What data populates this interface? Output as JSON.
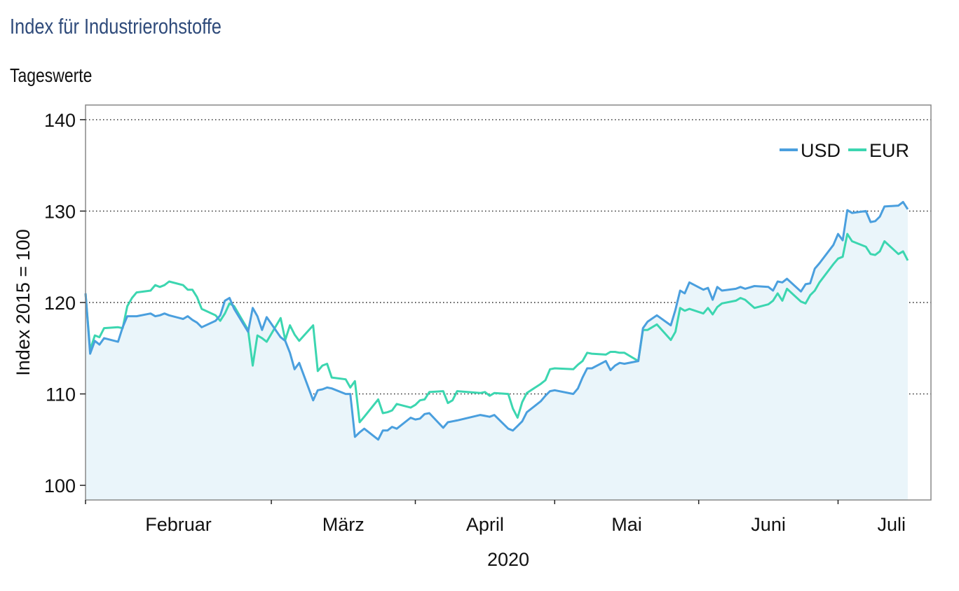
{
  "title": "Index für Industrierohstoffe",
  "subtitle": "Tageswerte",
  "chart_data": {
    "type": "line",
    "title": "Index für Industrierohstoffe",
    "subtitle": "Tageswerte",
    "ylabel": "Index 2015 = 100",
    "xlabel": "2020",
    "ylim": [
      98.4,
      141.6
    ],
    "yticks": [
      100,
      110,
      120,
      130,
      140
    ],
    "x_start": "2020-01-20",
    "x_end": "2020-07-20",
    "month_ticks": [
      "2020-01-20",
      "2020-02-29",
      "2020-03-31",
      "2020-04-30",
      "2020-05-31",
      "2020-06-30"
    ],
    "month_labels": [
      "Februar",
      "März",
      "April",
      "Mai",
      "Juni",
      "Juli"
    ],
    "grid": "horizontal dotted at 110, 120, 130, 140",
    "legend": "top-right",
    "series": [
      {
        "name": "USD",
        "color": "#4a9fde",
        "values": [
          [
            "2020-01-20",
            121.0
          ],
          [
            "2020-01-21",
            114.4
          ],
          [
            "2020-01-22",
            115.8
          ],
          [
            "2020-01-23",
            115.4
          ],
          [
            "2020-01-24",
            116.1
          ],
          [
            "2020-01-27",
            115.7
          ],
          [
            "2020-01-28",
            117.3
          ],
          [
            "2020-01-29",
            118.5
          ],
          [
            "2020-01-30",
            118.5
          ],
          [
            "2020-01-31",
            118.5
          ],
          [
            "2020-02-03",
            118.8
          ],
          [
            "2020-02-04",
            118.5
          ],
          [
            "2020-02-05",
            118.6
          ],
          [
            "2020-02-06",
            118.8
          ],
          [
            "2020-02-07",
            118.6
          ],
          [
            "2020-02-10",
            118.2
          ],
          [
            "2020-02-11",
            118.5
          ],
          [
            "2020-02-12",
            118.1
          ],
          [
            "2020-02-13",
            117.8
          ],
          [
            "2020-02-14",
            117.3
          ],
          [
            "2020-02-17",
            118.0
          ],
          [
            "2020-02-18",
            118.6
          ],
          [
            "2020-02-19",
            120.2
          ],
          [
            "2020-02-20",
            120.5
          ],
          [
            "2020-02-21",
            119.3
          ],
          [
            "2020-02-24",
            116.8
          ],
          [
            "2020-02-25",
            119.4
          ],
          [
            "2020-02-26",
            118.5
          ],
          [
            "2020-02-27",
            117.0
          ],
          [
            "2020-02-28",
            118.4
          ],
          [
            "2020-03-02",
            116.2
          ],
          [
            "2020-03-03",
            115.8
          ],
          [
            "2020-03-04",
            114.5
          ],
          [
            "2020-03-05",
            112.7
          ],
          [
            "2020-03-06",
            113.4
          ],
          [
            "2020-03-09",
            109.3
          ],
          [
            "2020-03-10",
            110.4
          ],
          [
            "2020-03-11",
            110.5
          ],
          [
            "2020-03-12",
            110.7
          ],
          [
            "2020-03-13",
            110.6
          ],
          [
            "2020-03-16",
            110.0
          ],
          [
            "2020-03-17",
            110.0
          ],
          [
            "2020-03-18",
            105.3
          ],
          [
            "2020-03-19",
            105.8
          ],
          [
            "2020-03-20",
            106.2
          ],
          [
            "2020-03-23",
            105.0
          ],
          [
            "2020-03-24",
            106.0
          ],
          [
            "2020-03-25",
            106.0
          ],
          [
            "2020-03-26",
            106.4
          ],
          [
            "2020-03-27",
            106.2
          ],
          [
            "2020-03-30",
            107.4
          ],
          [
            "2020-03-31",
            107.2
          ],
          [
            "2020-04-01",
            107.3
          ],
          [
            "2020-04-02",
            107.8
          ],
          [
            "2020-04-03",
            107.9
          ],
          [
            "2020-04-06",
            106.3
          ],
          [
            "2020-04-07",
            106.9
          ],
          [
            "2020-04-08",
            107.0
          ],
          [
            "2020-04-09",
            107.1
          ],
          [
            "2020-04-14",
            107.7
          ],
          [
            "2020-04-15",
            107.6
          ],
          [
            "2020-04-16",
            107.5
          ],
          [
            "2020-04-17",
            107.7
          ],
          [
            "2020-04-20",
            106.2
          ],
          [
            "2020-04-21",
            106.0
          ],
          [
            "2020-04-22",
            106.5
          ],
          [
            "2020-04-23",
            107.0
          ],
          [
            "2020-04-24",
            108.0
          ],
          [
            "2020-04-27",
            109.2
          ],
          [
            "2020-04-28",
            109.8
          ],
          [
            "2020-04-29",
            110.3
          ],
          [
            "2020-04-30",
            110.4
          ],
          [
            "2020-05-04",
            110.0
          ],
          [
            "2020-05-05",
            110.6
          ],
          [
            "2020-05-06",
            111.8
          ],
          [
            "2020-05-07",
            112.8
          ],
          [
            "2020-05-08",
            112.8
          ],
          [
            "2020-05-11",
            113.6
          ],
          [
            "2020-05-12",
            112.6
          ],
          [
            "2020-05-13",
            113.1
          ],
          [
            "2020-05-14",
            113.4
          ],
          [
            "2020-05-15",
            113.3
          ],
          [
            "2020-05-18",
            113.6
          ],
          [
            "2020-05-19",
            117.2
          ],
          [
            "2020-05-20",
            117.9
          ],
          [
            "2020-05-22",
            118.6
          ],
          [
            "2020-05-25",
            117.5
          ],
          [
            "2020-05-26",
            119.2
          ],
          [
            "2020-05-27",
            121.3
          ],
          [
            "2020-05-28",
            121.0
          ],
          [
            "2020-05-29",
            122.2
          ],
          [
            "2020-06-01",
            121.4
          ],
          [
            "2020-06-02",
            121.6
          ],
          [
            "2020-06-03",
            120.3
          ],
          [
            "2020-06-04",
            121.7
          ],
          [
            "2020-06-05",
            121.3
          ],
          [
            "2020-06-08",
            121.5
          ],
          [
            "2020-06-09",
            121.7
          ],
          [
            "2020-06-10",
            121.5
          ],
          [
            "2020-06-12",
            121.8
          ],
          [
            "2020-06-15",
            121.7
          ],
          [
            "2020-06-16",
            121.3
          ],
          [
            "2020-06-17",
            122.3
          ],
          [
            "2020-06-18",
            122.2
          ],
          [
            "2020-06-19",
            122.6
          ],
          [
            "2020-06-22",
            121.2
          ],
          [
            "2020-06-23",
            122.0
          ],
          [
            "2020-06-24",
            122.1
          ],
          [
            "2020-06-25",
            123.7
          ],
          [
            "2020-06-26",
            124.3
          ],
          [
            "2020-06-29",
            126.3
          ],
          [
            "2020-06-30",
            127.5
          ],
          [
            "2020-07-01",
            126.8
          ],
          [
            "2020-07-02",
            130.1
          ],
          [
            "2020-07-03",
            129.8
          ],
          [
            "2020-07-06",
            130.0
          ],
          [
            "2020-07-07",
            128.8
          ],
          [
            "2020-07-08",
            128.9
          ],
          [
            "2020-07-09",
            129.4
          ],
          [
            "2020-07-10",
            130.5
          ],
          [
            "2020-07-13",
            130.6
          ],
          [
            "2020-07-14",
            131.0
          ],
          [
            "2020-07-15",
            130.2
          ]
        ]
      },
      {
        "name": "EUR",
        "color": "#3cd6b0",
        "values": [
          [
            "2020-01-20",
            121.0
          ],
          [
            "2020-01-21",
            114.8
          ],
          [
            "2020-01-22",
            116.4
          ],
          [
            "2020-01-23",
            116.2
          ],
          [
            "2020-01-24",
            117.2
          ],
          [
            "2020-01-27",
            117.3
          ],
          [
            "2020-01-28",
            117.2
          ],
          [
            "2020-01-29",
            119.6
          ],
          [
            "2020-01-30",
            120.5
          ],
          [
            "2020-01-31",
            121.1
          ],
          [
            "2020-02-03",
            121.3
          ],
          [
            "2020-02-04",
            121.9
          ],
          [
            "2020-02-05",
            121.7
          ],
          [
            "2020-02-06",
            121.9
          ],
          [
            "2020-02-07",
            122.3
          ],
          [
            "2020-02-10",
            121.9
          ],
          [
            "2020-02-11",
            121.4
          ],
          [
            "2020-02-12",
            121.4
          ],
          [
            "2020-02-13",
            120.6
          ],
          [
            "2020-02-14",
            119.3
          ],
          [
            "2020-02-17",
            118.6
          ],
          [
            "2020-02-18",
            118.0
          ],
          [
            "2020-02-19",
            118.8
          ],
          [
            "2020-02-20",
            119.9
          ],
          [
            "2020-02-21",
            119.6
          ],
          [
            "2020-02-24",
            117.0
          ],
          [
            "2020-02-25",
            113.1
          ],
          [
            "2020-02-26",
            116.4
          ],
          [
            "2020-02-27",
            116.1
          ],
          [
            "2020-02-28",
            115.7
          ],
          [
            "2020-03-02",
            118.3
          ],
          [
            "2020-03-03",
            115.9
          ],
          [
            "2020-03-04",
            117.5
          ],
          [
            "2020-03-05",
            116.5
          ],
          [
            "2020-03-06",
            115.8
          ],
          [
            "2020-03-09",
            117.5
          ],
          [
            "2020-03-10",
            112.5
          ],
          [
            "2020-03-11",
            113.1
          ],
          [
            "2020-03-12",
            113.3
          ],
          [
            "2020-03-13",
            111.8
          ],
          [
            "2020-03-16",
            111.6
          ],
          [
            "2020-03-17",
            110.7
          ],
          [
            "2020-03-18",
            111.4
          ],
          [
            "2020-03-19",
            106.9
          ],
          [
            "2020-03-20",
            107.5
          ],
          [
            "2020-03-23",
            109.4
          ],
          [
            "2020-03-24",
            107.9
          ],
          [
            "2020-03-25",
            108.0
          ],
          [
            "2020-03-26",
            108.2
          ],
          [
            "2020-03-27",
            108.9
          ],
          [
            "2020-03-30",
            108.5
          ],
          [
            "2020-03-31",
            108.8
          ],
          [
            "2020-04-01",
            109.3
          ],
          [
            "2020-04-02",
            109.4
          ],
          [
            "2020-04-03",
            110.2
          ],
          [
            "2020-04-06",
            110.3
          ],
          [
            "2020-04-07",
            109.0
          ],
          [
            "2020-04-08",
            109.3
          ],
          [
            "2020-04-09",
            110.3
          ],
          [
            "2020-04-14",
            110.1
          ],
          [
            "2020-04-15",
            110.2
          ],
          [
            "2020-04-16",
            109.8
          ],
          [
            "2020-04-17",
            110.1
          ],
          [
            "2020-04-20",
            110.0
          ],
          [
            "2020-04-21",
            108.4
          ],
          [
            "2020-04-22",
            107.4
          ],
          [
            "2020-04-23",
            109.1
          ],
          [
            "2020-04-24",
            110.1
          ],
          [
            "2020-04-27",
            111.1
          ],
          [
            "2020-04-28",
            111.5
          ],
          [
            "2020-04-29",
            112.7
          ],
          [
            "2020-04-30",
            112.8
          ],
          [
            "2020-05-04",
            112.7
          ],
          [
            "2020-05-05",
            113.2
          ],
          [
            "2020-05-06",
            113.6
          ],
          [
            "2020-05-07",
            114.5
          ],
          [
            "2020-05-08",
            114.4
          ],
          [
            "2020-05-11",
            114.3
          ],
          [
            "2020-05-12",
            114.6
          ],
          [
            "2020-05-13",
            114.6
          ],
          [
            "2020-05-14",
            114.5
          ],
          [
            "2020-05-15",
            114.5
          ],
          [
            "2020-05-18",
            113.6
          ],
          [
            "2020-05-19",
            117.0
          ],
          [
            "2020-05-20",
            117.0
          ],
          [
            "2020-05-22",
            117.6
          ],
          [
            "2020-05-25",
            115.9
          ],
          [
            "2020-05-26",
            116.8
          ],
          [
            "2020-05-27",
            119.4
          ],
          [
            "2020-05-28",
            119.1
          ],
          [
            "2020-05-29",
            119.3
          ],
          [
            "2020-06-01",
            118.8
          ],
          [
            "2020-06-02",
            119.4
          ],
          [
            "2020-06-03",
            118.7
          ],
          [
            "2020-06-04",
            119.5
          ],
          [
            "2020-06-05",
            119.9
          ],
          [
            "2020-06-08",
            120.2
          ],
          [
            "2020-06-09",
            120.5
          ],
          [
            "2020-06-10",
            120.3
          ],
          [
            "2020-06-12",
            119.4
          ],
          [
            "2020-06-15",
            119.8
          ],
          [
            "2020-06-16",
            120.2
          ],
          [
            "2020-06-17",
            121.0
          ],
          [
            "2020-06-18",
            120.2
          ],
          [
            "2020-06-19",
            121.5
          ],
          [
            "2020-06-22",
            120.1
          ],
          [
            "2020-06-23",
            119.9
          ],
          [
            "2020-06-24",
            120.8
          ],
          [
            "2020-06-25",
            121.3
          ],
          [
            "2020-06-26",
            122.2
          ],
          [
            "2020-06-29",
            124.2
          ],
          [
            "2020-06-30",
            124.8
          ],
          [
            "2020-07-01",
            125.0
          ],
          [
            "2020-07-02",
            127.5
          ],
          [
            "2020-07-03",
            126.7
          ],
          [
            "2020-07-06",
            126.1
          ],
          [
            "2020-07-07",
            125.3
          ],
          [
            "2020-07-08",
            125.2
          ],
          [
            "2020-07-09",
            125.6
          ],
          [
            "2020-07-10",
            126.7
          ],
          [
            "2020-07-13",
            125.3
          ],
          [
            "2020-07-14",
            125.6
          ],
          [
            "2020-07-15",
            124.6
          ]
        ]
      }
    ],
    "fill_under": "USD",
    "fill_color": "#eaf5fa"
  }
}
